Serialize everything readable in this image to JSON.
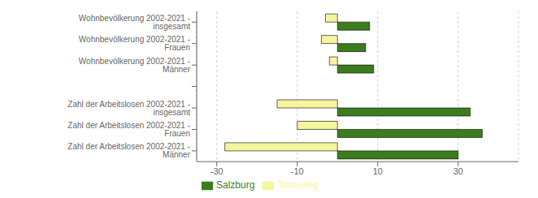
{
  "chart_data": {
    "type": "bar",
    "orientation": "horizontal",
    "categories": [
      "Wohnbevölkerung 2002-2021 - insgesamt",
      "Wohnbevölkerung 2002-2021 - Frauen",
      "Wohnbevölkerung 2002-2021 - Männer",
      null,
      "Zahl der Arbeitslosen 2002-2021 - insgesamt",
      "Zahl der Arbeitslosen 2002-2021 - Frauen",
      "Zahl der Arbeitslosen 2002-2021 - Männer"
    ],
    "series": [
      {
        "name": "Tamsweg",
        "color": "#f5f5a0",
        "values": [
          -3,
          -4,
          -2,
          null,
          -15,
          -10,
          -28
        ]
      },
      {
        "name": "Salzburg",
        "color": "#3a7d1e",
        "values": [
          8,
          7,
          9,
          null,
          33,
          36,
          30
        ]
      }
    ],
    "xlim": [
      -35,
      45
    ],
    "xticks": [
      -30,
      -10,
      10,
      30
    ],
    "grid": true,
    "legend": "bottom"
  }
}
